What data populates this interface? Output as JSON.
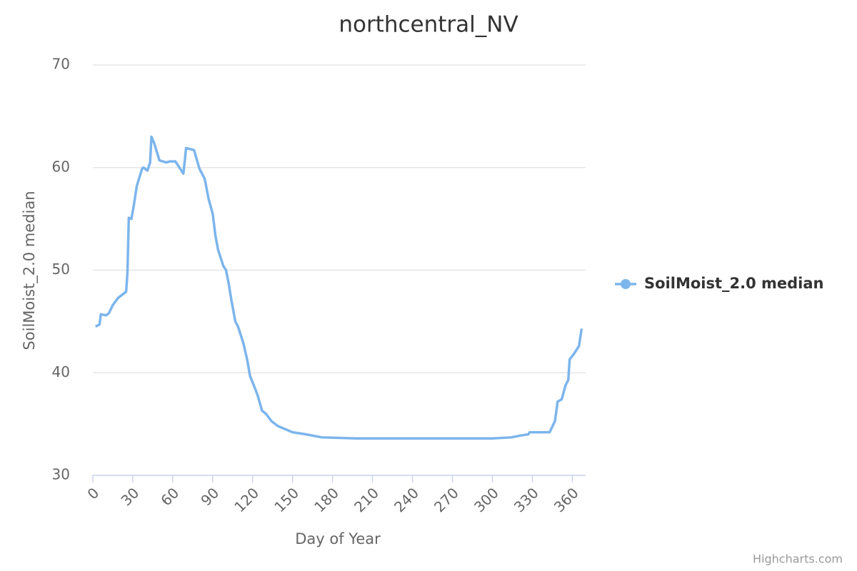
{
  "chart_data": {
    "type": "line",
    "title": "northcentral_NV",
    "x_label": "Day of Year",
    "y_label": "SoilMoist_2.0 median",
    "x": [
      2,
      5,
      6,
      10,
      12,
      15,
      19,
      25,
      26,
      27,
      29,
      31,
      33,
      37,
      38,
      41,
      43,
      44,
      46,
      50,
      55,
      58,
      62,
      65,
      68,
      70,
      76,
      80,
      84,
      87,
      90,
      92,
      94,
      98,
      100,
      102,
      104,
      107,
      109,
      113,
      116,
      118,
      122,
      124,
      127,
      130,
      134,
      139,
      150,
      160,
      172,
      198,
      300,
      314,
      322,
      327,
      328,
      343,
      347,
      349,
      352,
      355,
      357,
      358,
      361,
      365,
      367
    ],
    "series": [
      {
        "name": "SoilMoist_2.0 median",
        "color": "#7cb5ec",
        "values": [
          44.5,
          44.7,
          45.7,
          45.6,
          45.8,
          46.6,
          47.3,
          47.9,
          49.8,
          55.1,
          55.0,
          56.5,
          58.2,
          59.9,
          60.0,
          59.7,
          60.5,
          63.0,
          62.4,
          60.7,
          60.5,
          60.6,
          60.6,
          60.0,
          59.4,
          61.9,
          61.7,
          59.9,
          58.9,
          56.9,
          55.5,
          53.4,
          52.0,
          50.4,
          50.0,
          48.7,
          47.1,
          45.0,
          44.5,
          42.9,
          41.2,
          39.7,
          38.4,
          37.7,
          36.3,
          36.0,
          35.3,
          34.8,
          34.2,
          34.0,
          33.7,
          33.6,
          33.6,
          33.7,
          33.9,
          34.0,
          34.2,
          34.2,
          35.3,
          37.2,
          37.4,
          38.8,
          39.3,
          41.3,
          41.8,
          42.6,
          44.3
        ]
      }
    ],
    "xlim": [
      0,
      370
    ],
    "xticks": [
      0,
      30,
      60,
      90,
      120,
      150,
      180,
      210,
      240,
      270,
      300,
      330,
      360
    ],
    "ylim": [
      30,
      70
    ],
    "yticks": [
      30,
      40,
      50,
      60,
      70
    ],
    "grid": true,
    "legend": "right",
    "credits": "Highcharts.com"
  }
}
